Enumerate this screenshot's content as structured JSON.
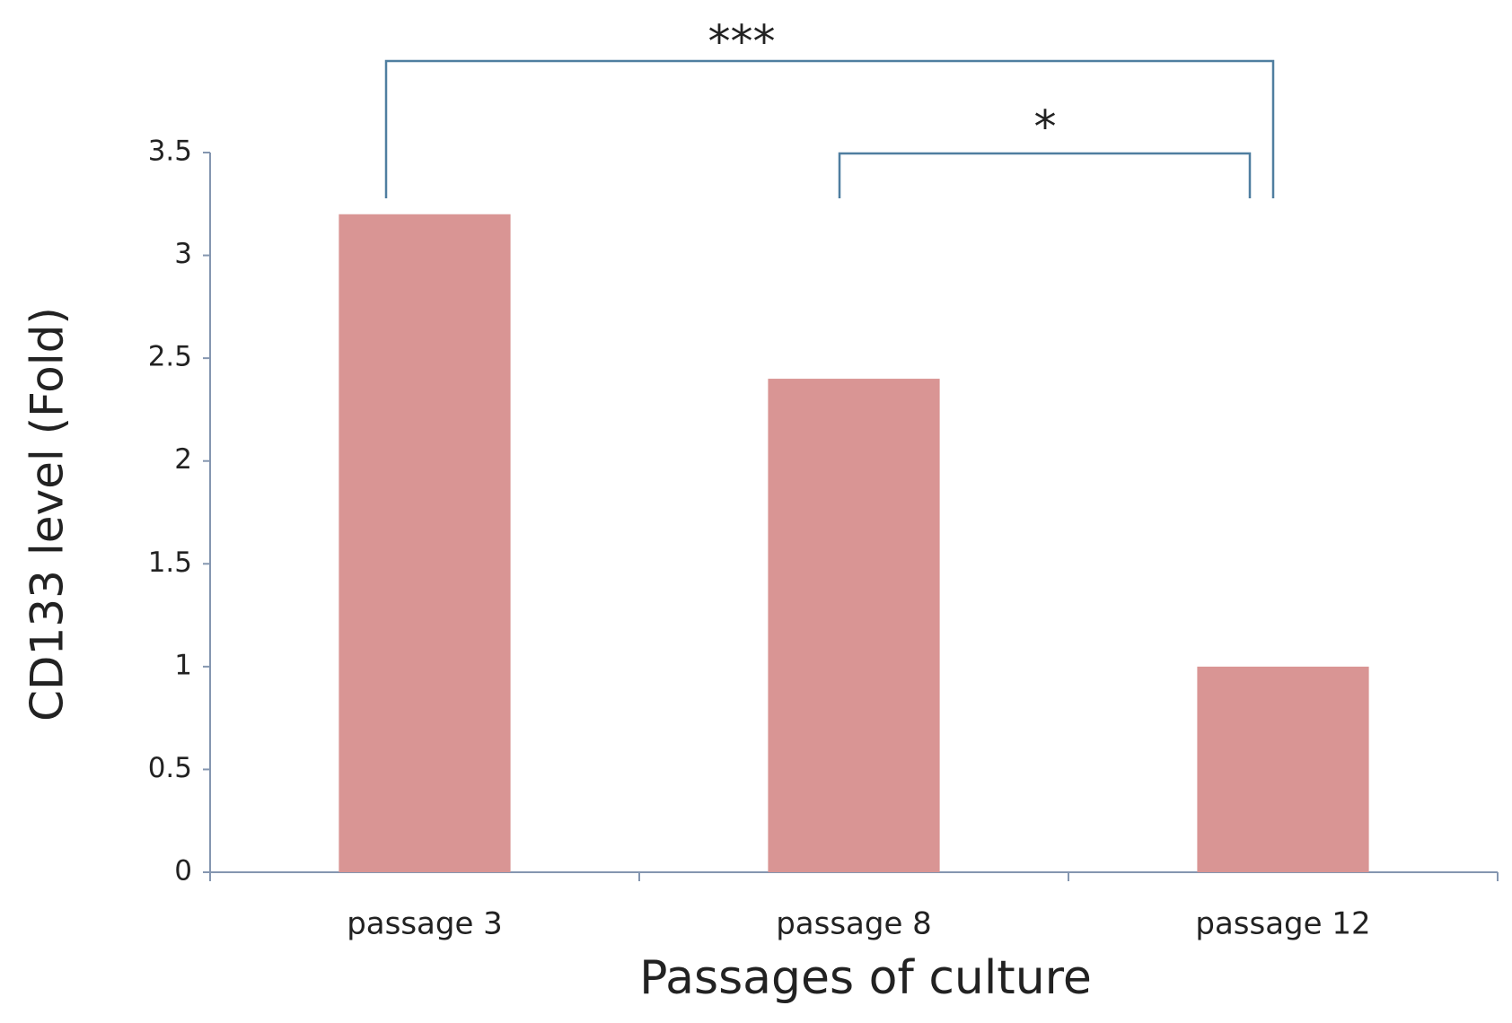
{
  "chart_data": {
    "type": "bar",
    "x_label": "Passages of culture",
    "y_label": "CD133 level (Fold)",
    "categories": [
      "passage 3",
      "passage 8",
      "passage 12"
    ],
    "values": [
      3.2,
      2.4,
      1
    ],
    "color": "#d99594",
    "ylim": [
      0,
      3.5
    ],
    "yticks": [
      0,
      0.5,
      1,
      1.5,
      2,
      2.5,
      3,
      3.5
    ],
    "annotations": [
      {
        "label": "***"
      },
      {
        "label": "*"
      }
    ]
  }
}
